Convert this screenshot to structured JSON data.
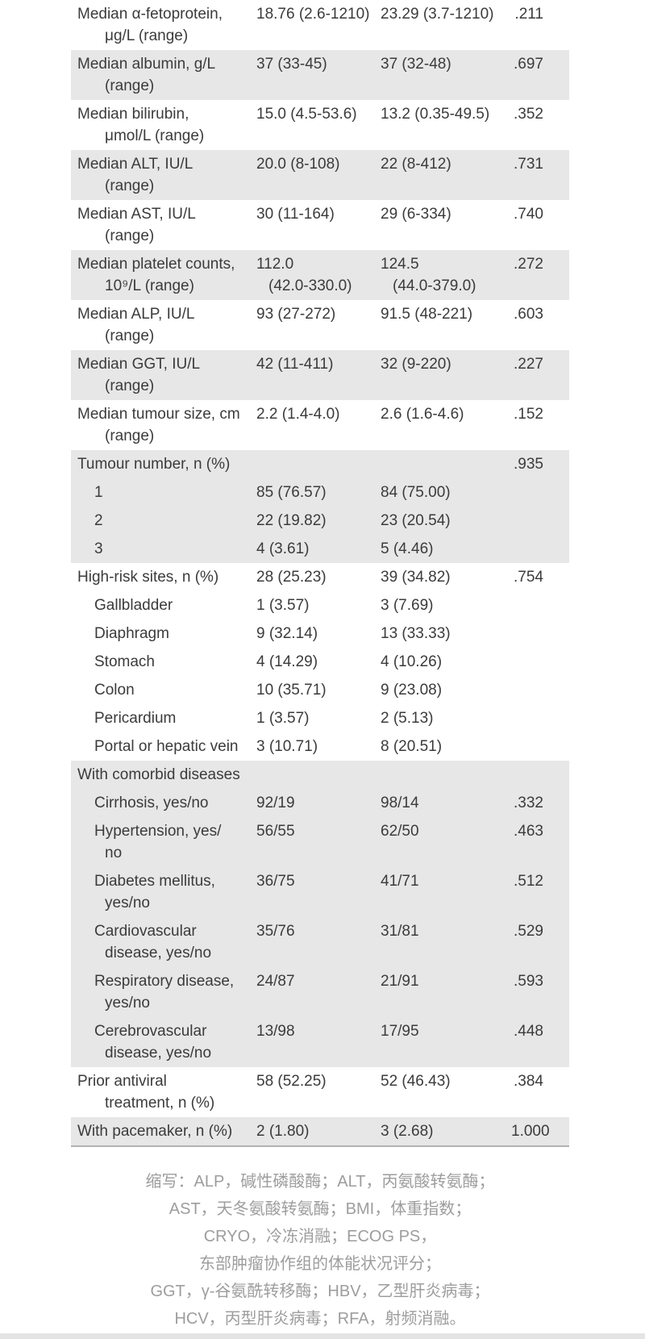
{
  "table": {
    "rows": [
      {
        "label": [
          "Median α-fetoprotein,",
          "μg/L (range)"
        ],
        "group1": [
          "18.76 (2.6-1210)"
        ],
        "group2": [
          "23.29 (3.7-1210)"
        ],
        "p": ".211",
        "shaded": false,
        "sub": false
      },
      {
        "label": [
          "Median albumin, g/L",
          "(range)"
        ],
        "group1": [
          "37 (33-45)"
        ],
        "group2": [
          "37 (32-48)"
        ],
        "p": ".697",
        "shaded": true,
        "sub": false
      },
      {
        "label": [
          "Median bilirubin,",
          "μmol/L (range)"
        ],
        "group1": [
          "15.0 (4.5-53.6)"
        ],
        "group2": [
          "13.2 (0.35-49.5)"
        ],
        "p": ".352",
        "shaded": false,
        "sub": false
      },
      {
        "label": [
          "Median ALT, IU/L",
          "(range)"
        ],
        "group1": [
          "20.0 (8-108)"
        ],
        "group2": [
          "22 (8-412)"
        ],
        "p": ".731",
        "shaded": true,
        "sub": false
      },
      {
        "label": [
          "Median AST, IU/L",
          "(range)"
        ],
        "group1": [
          "30 (11-164)"
        ],
        "group2": [
          "29 (6-334)"
        ],
        "p": ".740",
        "shaded": false,
        "sub": false
      },
      {
        "label": [
          "Median platelet counts,",
          "10⁹/L (range)"
        ],
        "group1": [
          "112.0",
          "(42.0-330.0)"
        ],
        "group2": [
          "124.5",
          "(44.0-379.0)"
        ],
        "p": ".272",
        "shaded": true,
        "sub": false
      },
      {
        "label": [
          "Median ALP, IU/L",
          "(range)"
        ],
        "group1": [
          "93 (27-272)"
        ],
        "group2": [
          "91.5 (48-221)"
        ],
        "p": ".603",
        "shaded": false,
        "sub": false
      },
      {
        "label": [
          "Median GGT, IU/L",
          "(range)"
        ],
        "group1": [
          "42 (11-411)"
        ],
        "group2": [
          "32 (9-220)"
        ],
        "p": ".227",
        "shaded": true,
        "sub": false
      },
      {
        "label": [
          "Median tumour size, cm",
          "(range)"
        ],
        "group1": [
          "2.2 (1.4-4.0)"
        ],
        "group2": [
          "2.6 (1.6-4.6)"
        ],
        "p": ".152",
        "shaded": false,
        "sub": false
      },
      {
        "label": [
          "Tumour number, n (%)"
        ],
        "group1": [],
        "group2": [],
        "p": ".935",
        "shaded": true,
        "sub": false
      },
      {
        "label": [
          "1"
        ],
        "group1": [
          "85 (76.57)"
        ],
        "group2": [
          "84 (75.00)"
        ],
        "p": "",
        "shaded": true,
        "sub": true
      },
      {
        "label": [
          "2"
        ],
        "group1": [
          "22 (19.82)"
        ],
        "group2": [
          "23 (20.54)"
        ],
        "p": "",
        "shaded": true,
        "sub": true
      },
      {
        "label": [
          "3"
        ],
        "group1": [
          "4 (3.61)"
        ],
        "group2": [
          "5 (4.46)"
        ],
        "p": "",
        "shaded": true,
        "sub": true
      },
      {
        "label": [
          "High-risk sites, n (%)"
        ],
        "group1": [
          "28 (25.23)"
        ],
        "group2": [
          "39 (34.82)"
        ],
        "p": ".754",
        "shaded": false,
        "sub": false
      },
      {
        "label": [
          "Gallbladder"
        ],
        "group1": [
          "1 (3.57)"
        ],
        "group2": [
          "3 (7.69)"
        ],
        "p": "",
        "shaded": false,
        "sub": true
      },
      {
        "label": [
          "Diaphragm"
        ],
        "group1": [
          "9 (32.14)"
        ],
        "group2": [
          "13 (33.33)"
        ],
        "p": "",
        "shaded": false,
        "sub": true
      },
      {
        "label": [
          "Stomach"
        ],
        "group1": [
          "4 (14.29)"
        ],
        "group2": [
          "4 (10.26)"
        ],
        "p": "",
        "shaded": false,
        "sub": true
      },
      {
        "label": [
          "Colon"
        ],
        "group1": [
          "10 (35.71)"
        ],
        "group2": [
          "9 (23.08)"
        ],
        "p": "",
        "shaded": false,
        "sub": true
      },
      {
        "label": [
          "Pericardium"
        ],
        "group1": [
          "1 (3.57)"
        ],
        "group2": [
          "2 (5.13)"
        ],
        "p": "",
        "shaded": false,
        "sub": true
      },
      {
        "label": [
          "Portal or hepatic vein"
        ],
        "group1": [
          "3 (10.71)"
        ],
        "group2": [
          "8 (20.51)"
        ],
        "p": "",
        "shaded": false,
        "sub": true
      },
      {
        "label": [
          "With comorbid diseases"
        ],
        "group1": [],
        "group2": [],
        "p": "",
        "shaded": true,
        "sub": false
      },
      {
        "label": [
          "Cirrhosis, yes/no"
        ],
        "group1": [
          "92/19"
        ],
        "group2": [
          "98/14"
        ],
        "p": ".332",
        "shaded": true,
        "sub": true
      },
      {
        "label": [
          "Hypertension, yes/",
          "no"
        ],
        "group1": [
          "56/55"
        ],
        "group2": [
          "62/50"
        ],
        "p": ".463",
        "shaded": true,
        "sub": true
      },
      {
        "label": [
          "Diabetes mellitus,",
          "yes/no"
        ],
        "group1": [
          "36/75"
        ],
        "group2": [
          "41/71"
        ],
        "p": ".512",
        "shaded": true,
        "sub": true
      },
      {
        "label": [
          "Cardiovascular",
          "disease, yes/no"
        ],
        "group1": [
          "35/76"
        ],
        "group2": [
          "31/81"
        ],
        "p": ".529",
        "shaded": true,
        "sub": true
      },
      {
        "label": [
          "Respiratory disease,",
          "yes/no"
        ],
        "group1": [
          "24/87"
        ],
        "group2": [
          "21/91"
        ],
        "p": ".593",
        "shaded": true,
        "sub": true
      },
      {
        "label": [
          "Cerebrovascular",
          "disease, yes/no"
        ],
        "group1": [
          "13/98"
        ],
        "group2": [
          "17/95"
        ],
        "p": ".448",
        "shaded": true,
        "sub": true
      },
      {
        "label": [
          "Prior antiviral",
          "treatment, n (%)"
        ],
        "group1": [
          "58 (52.25)"
        ],
        "group2": [
          "52 (46.43)"
        ],
        "p": ".384",
        "shaded": false,
        "sub": false
      },
      {
        "label": [
          "With pacemaker, n (%)"
        ],
        "group1": [
          "2 (1.80)"
        ],
        "group2": [
          "3 (2.68)"
        ],
        "p": "1.000",
        "shaded": true,
        "sub": false
      }
    ]
  },
  "footnote": {
    "lines": [
      "缩写：ALP，碱性磷酸酶；ALT，丙氨酸转氨酶；",
      "AST，天冬氨酸转氨酶；BMI，体重指数；",
      "CRYO，冷冻消融；ECOG PS，",
      "东部肿瘤协作组的体能状况评分；",
      "GGT，γ-谷氨酰转移酶；HBV，乙型肝炎病毒；",
      "HCV，丙型肝炎病毒；RFA，射频消融。"
    ]
  },
  "colors": {
    "row_shade": "#e7e7e7",
    "table_bottom_border": "#b3b3b3",
    "text": "#3b3b3b",
    "footnote_text": "#9d9d9d",
    "bottom_strip": "#e4e4e4"
  }
}
